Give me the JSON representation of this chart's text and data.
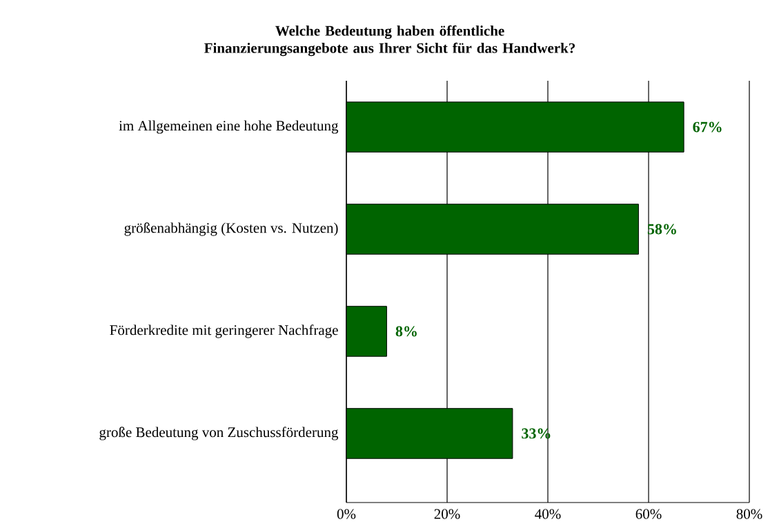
{
  "chart_data": {
    "type": "bar",
    "orientation": "horizontal",
    "title": "Welche Bedeutung haben öffentliche Finanzierungsangebote aus Ihrer Sicht für das Handwerk?",
    "categories": [
      "im Allgemeinen eine hohe Bedeutung",
      "größenabhängig (Kosten vs. Nutzen)",
      "Förderkredite mit geringerer Nachfrage",
      "große Bedeutung von Zuschussförderung"
    ],
    "values": [
      67,
      58,
      8,
      33
    ],
    "value_labels": [
      "67%",
      "58%",
      "8%",
      "33%"
    ],
    "color": "#006400",
    "xlim": [
      0,
      80
    ],
    "xticks": [
      {
        "value": 0,
        "label": "0%"
      },
      {
        "value": 20,
        "label": "20%"
      },
      {
        "value": 40,
        "label": "40%"
      },
      {
        "value": 60,
        "label": "60%"
      },
      {
        "value": 80,
        "label": "80%"
      }
    ],
    "grid": "x"
  }
}
